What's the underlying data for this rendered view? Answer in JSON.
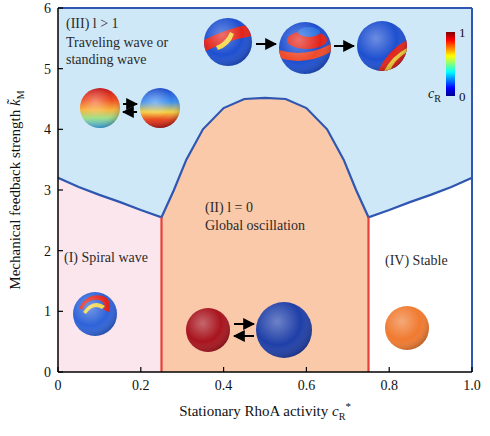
{
  "chart_data": {
    "type": "phase",
    "x_label": {
      "text": "Stationary RhoA activity",
      "symbol": "c",
      "sub": "R",
      "sup": "*"
    },
    "y_label": {
      "text": "Mechanical feedback strength",
      "symbol": "k̃",
      "sub": "M"
    },
    "xlim": [
      0,
      1
    ],
    "ylim": [
      0,
      6
    ],
    "xticks": [
      0,
      0.2,
      0.4,
      0.6,
      0.8,
      {
        "value": 1,
        "label": "1.0"
      }
    ],
    "yticks": [
      0,
      1,
      2,
      3,
      4,
      5,
      6
    ],
    "boundary": {
      "color": "#2f56b0",
      "x": [
        0,
        0.05,
        0.1,
        0.15,
        0.2,
        0.25,
        0.28,
        0.31,
        0.35,
        0.4,
        0.45,
        0.5,
        0.55,
        0.6,
        0.65,
        0.69,
        0.72,
        0.75,
        0.8,
        0.85,
        0.9,
        0.95,
        1
      ],
      "y": [
        3.2,
        3.05,
        2.92,
        2.8,
        2.67,
        2.55,
        3.0,
        3.5,
        4.0,
        4.35,
        4.5,
        4.52,
        4.5,
        4.35,
        4.0,
        3.5,
        3.0,
        2.55,
        2.67,
        2.8,
        2.92,
        3.05,
        3.2
      ]
    },
    "phase_lines": {
      "x": [
        0.25,
        0.75
      ],
      "color": "#e8403a"
    },
    "regions": [
      {
        "label": "(I) Spiral wave",
        "color": "#fbe6ee",
        "xlim": [
          0,
          0.25
        ]
      },
      {
        "label": "(II) l = 0",
        "text": "Global oscillation",
        "color": "#fac9a9",
        "xlim": [
          0.25,
          0.75
        ]
      },
      {
        "label": "(IV) Stable",
        "color": "#ffffff",
        "xlim": [
          0.75,
          1
        ]
      }
    ],
    "upper_region": {
      "label": "(III) l > 1",
      "text": "Traveling wave or standing wave",
      "color": "#cfe8f8"
    },
    "colorbar": {
      "range": [
        0,
        1
      ],
      "ticks": [
        0,
        1
      ],
      "label": {
        "symbol": "c",
        "sub": "R"
      }
    }
  }
}
